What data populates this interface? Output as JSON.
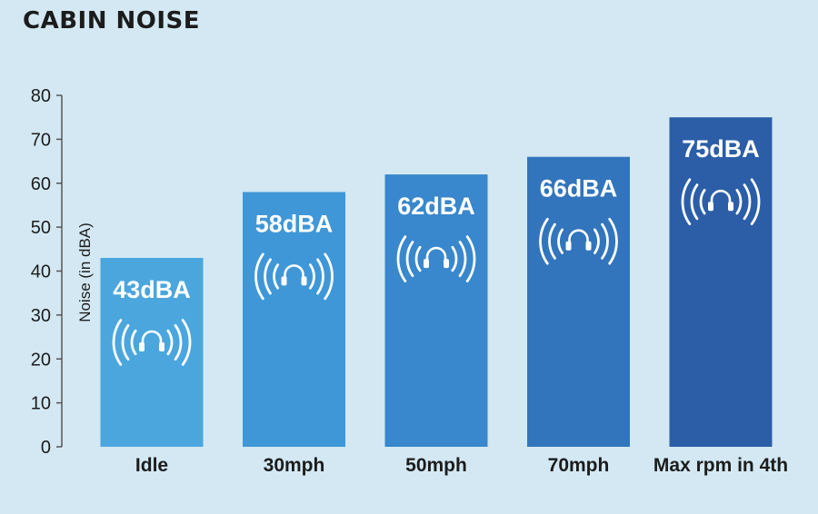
{
  "chart_data": {
    "type": "bar",
    "title": "CABIN NOISE",
    "xlabel": "",
    "ylabel": "Noise (in dBA)",
    "ylim": [
      0,
      80
    ],
    "yticks": [
      0,
      10,
      20,
      30,
      40,
      50,
      60,
      70,
      80
    ],
    "categories": [
      "Idle",
      "30mph",
      "50mph",
      "70mph",
      "Max rpm in 4th"
    ],
    "values": [
      43,
      58,
      62,
      66,
      75
    ],
    "data_labels": [
      "43dBA",
      "58dBA",
      "62dBA",
      "66dBA",
      "75dBA"
    ],
    "bar_colors": [
      "#4ba6de",
      "#3f97d8",
      "#3987cc",
      "#3275bc",
      "#2c5ea8"
    ],
    "icon": "headphones-sound-icon",
    "grid": false,
    "legend": "none"
  },
  "colors": {
    "background": "#d3e8f3",
    "text": "#1c1c1c",
    "axis": "#555555"
  }
}
